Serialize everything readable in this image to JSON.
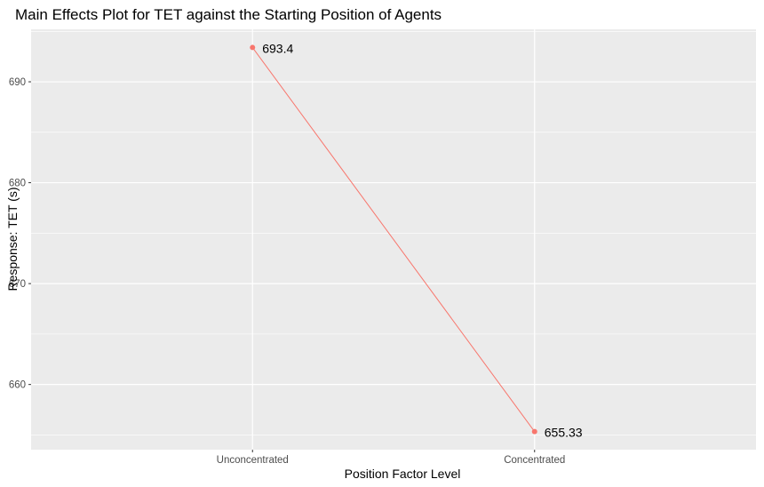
{
  "chart_data": {
    "type": "line",
    "title": "Main Effects Plot for TET against the Starting Position of Agents",
    "xlabel": "Position Factor Level",
    "ylabel": "Response: TET (s)",
    "categories": [
      "Unconcentrated",
      "Concentrated"
    ],
    "series": [
      {
        "values": [
          693.4,
          655.33
        ],
        "labels": [
          "693.4",
          "655.33"
        ],
        "color": "#F8766D"
      }
    ],
    "ylim": [
      653.54,
      695.2
    ],
    "yticks": [
      660,
      670,
      680,
      690
    ],
    "grid": true,
    "panel_color": "#EBEBEB",
    "grid_color": "#FFFFFF"
  }
}
